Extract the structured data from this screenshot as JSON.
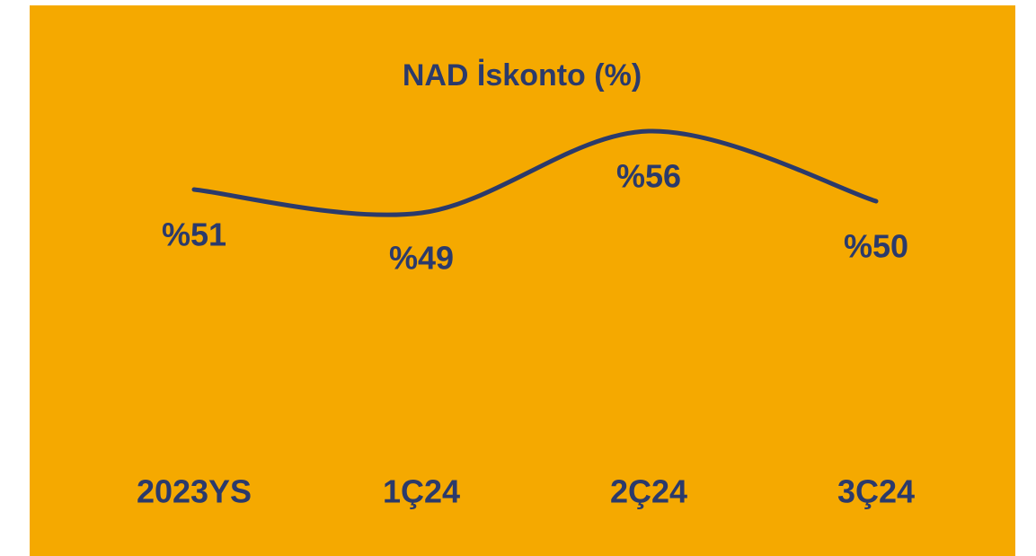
{
  "chart_data": {
    "type": "line",
    "title": "NAD İskonto (%)",
    "categories": [
      "2023YS",
      "1Ç24",
      "2Ç24",
      "3Ç24"
    ],
    "values": [
      51,
      49,
      56,
      50
    ],
    "value_labels": [
      "%51",
      "%49",
      "%56",
      "%50"
    ],
    "color": "#2b3a6b",
    "background": "#f5a900",
    "smooth": true
  }
}
